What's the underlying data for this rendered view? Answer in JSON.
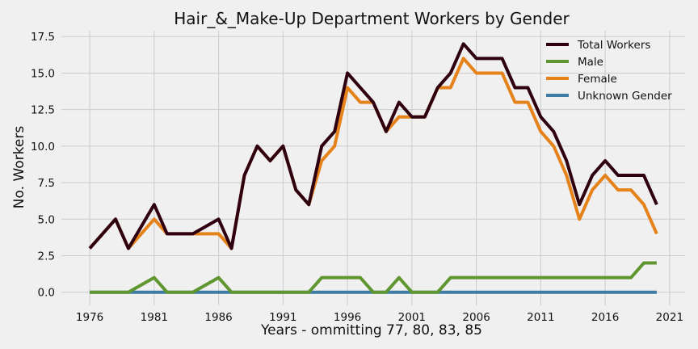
{
  "chart_data": {
    "type": "line",
    "title": "Hair_&_Make-Up Department Workers by Gender",
    "xlabel": "Years - ommitting 77, 80, 83, 85",
    "ylabel": "No. Workers",
    "xlim": [
      1973.8,
      2022.2
    ],
    "ylim": [
      -0.9,
      17.9
    ],
    "xticks": [
      1976,
      1981,
      1986,
      1991,
      1996,
      2001,
      2006,
      2011,
      2016,
      2021
    ],
    "yticks": [
      0.0,
      2.5,
      5.0,
      7.5,
      10.0,
      12.5,
      15.0,
      17.5
    ],
    "ytick_labels": [
      "0.0",
      "2.5",
      "5.0",
      "7.5",
      "10.0",
      "12.5",
      "15.0",
      "17.5"
    ],
    "grid": true,
    "legend_position": "top-right",
    "x": [
      1976,
      1978,
      1979,
      1981,
      1982,
      1984,
      1986,
      1987,
      1988,
      1989,
      1990,
      1991,
      1992,
      1993,
      1994,
      1995,
      1996,
      1997,
      1998,
      1999,
      2000,
      2001,
      2002,
      2003,
      2004,
      2005,
      2006,
      2007,
      2008,
      2009,
      2010,
      2011,
      2012,
      2013,
      2014,
      2015,
      2016,
      2017,
      2018,
      2019,
      2020
    ],
    "series": [
      {
        "name": "Total Workers",
        "color": "#2e0010",
        "values": [
          3,
          5,
          3,
          6,
          4,
          4,
          5,
          3,
          8,
          10,
          9,
          10,
          7,
          6,
          10,
          11,
          15,
          14,
          13,
          11,
          13,
          12,
          12,
          14,
          15,
          17,
          16,
          16,
          16,
          14,
          14,
          12,
          11,
          9,
          6,
          8,
          9,
          8,
          8,
          8,
          6
        ]
      },
      {
        "name": "Male",
        "color": "#5f962f",
        "values": [
          0,
          0,
          0,
          1,
          0,
          0,
          1,
          0,
          0,
          0,
          0,
          0,
          0,
          0,
          1,
          1,
          1,
          1,
          0,
          0,
          1,
          0,
          0,
          0,
          1,
          1,
          1,
          1,
          1,
          1,
          1,
          1,
          1,
          1,
          1,
          1,
          1,
          1,
          1,
          2,
          2
        ]
      },
      {
        "name": "Female",
        "color": "#e5821a",
        "values": [
          3,
          5,
          3,
          5,
          4,
          4,
          4,
          3,
          8,
          10,
          9,
          10,
          7,
          6,
          9,
          10,
          14,
          13,
          13,
          11,
          12,
          12,
          12,
          14,
          14,
          16,
          15,
          15,
          15,
          13,
          13,
          11,
          10,
          8,
          5,
          7,
          8,
          7,
          7,
          6,
          4
        ]
      },
      {
        "name": "Unknown Gender",
        "color": "#3e7ca6",
        "values": [
          0,
          0,
          0,
          0,
          0,
          0,
          0,
          0,
          0,
          0,
          0,
          0,
          0,
          0,
          0,
          0,
          0,
          0,
          0,
          0,
          0,
          0,
          0,
          0,
          0,
          0,
          0,
          0,
          0,
          0,
          0,
          0,
          0,
          0,
          0,
          0,
          0,
          0,
          0,
          0,
          0
        ]
      }
    ]
  }
}
